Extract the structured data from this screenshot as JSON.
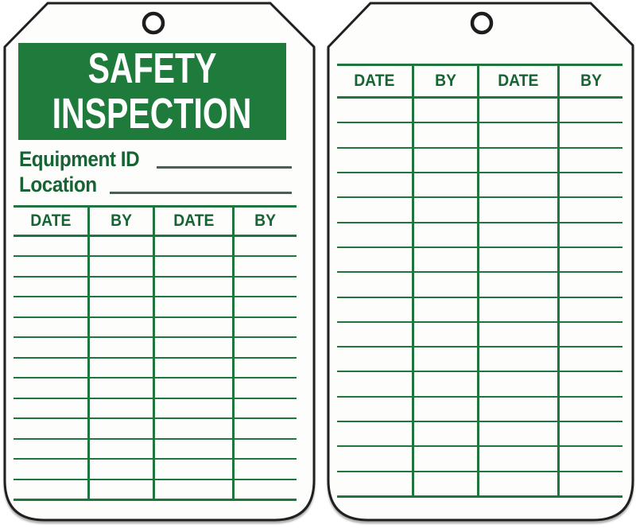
{
  "colors": {
    "banner_green": "#1e7b3c",
    "label_text_green": "#166334",
    "grid_line_green": "#20753f",
    "tag_outline_black": "#202020",
    "tag_fill_white": "#fdfdfb",
    "title_text_white": "#ffffff"
  },
  "front_tag": {
    "title_line1": "SAFETY",
    "title_line2": "INSPECTION",
    "equipment_label": "Equipment ID",
    "equipment_value": "",
    "location_label": "Location",
    "location_value": "",
    "log_table": {
      "headers": [
        "DATE",
        "BY",
        "DATE",
        "BY"
      ],
      "blank_rows": 13
    }
  },
  "back_tag": {
    "log_table": {
      "headers": [
        "DATE",
        "BY",
        "DATE",
        "BY"
      ],
      "blank_rows": 16
    }
  }
}
